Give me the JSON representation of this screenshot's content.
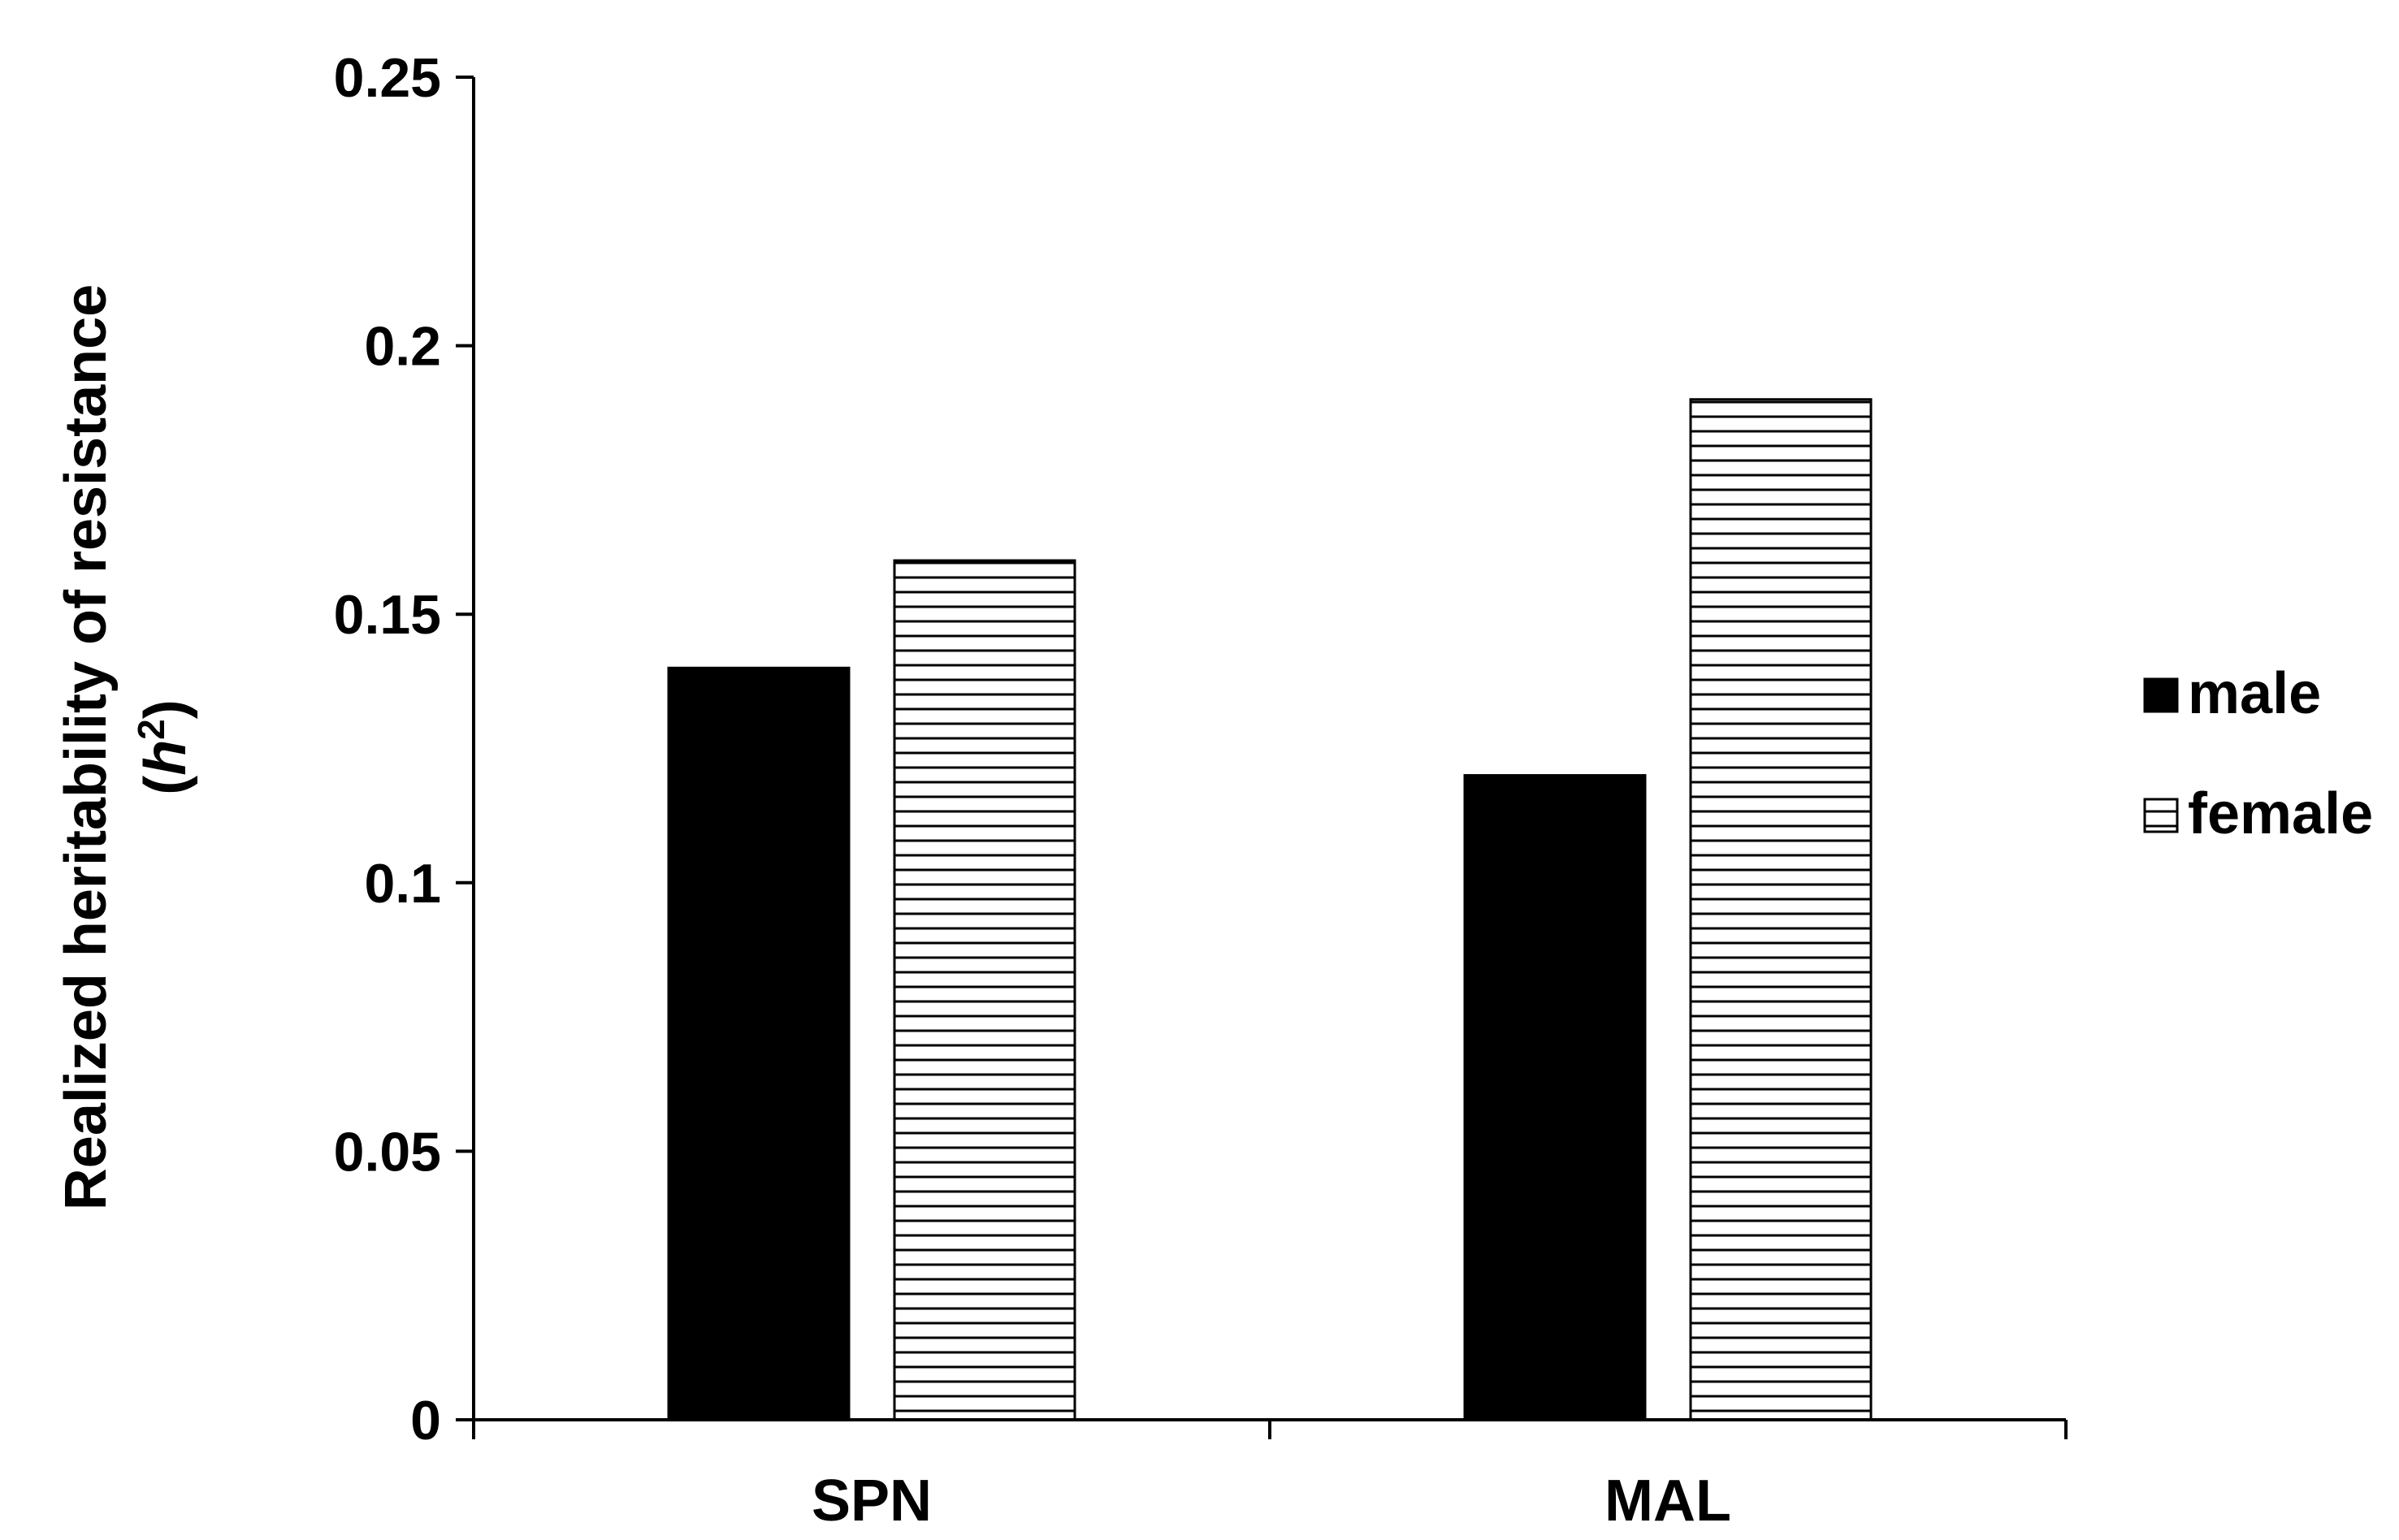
{
  "chart_data": {
    "type": "bar",
    "title": "",
    "xlabel": "",
    "ylabel_main": "Realized heritability of resistance",
    "ylabel_sub_open": "(",
    "ylabel_sub_var": "h",
    "ylabel_sub_sup": "2",
    "ylabel_sub_close": ")",
    "categories": [
      "SPN",
      "MAL"
    ],
    "series": [
      {
        "name": "male",
        "values": [
          0.14,
          0.12
        ],
        "fill": "#000000",
        "pattern": "solid"
      },
      {
        "name": "female",
        "values": [
          0.16,
          0.19
        ],
        "fill": "#ffffff",
        "pattern": "horizontal-lines"
      }
    ],
    "ylim": [
      0,
      0.25
    ],
    "yticks": [
      "0",
      "0.05",
      "0.1",
      "0.15",
      "0.2",
      "0.25"
    ],
    "grid": false,
    "legend_position": "right"
  }
}
